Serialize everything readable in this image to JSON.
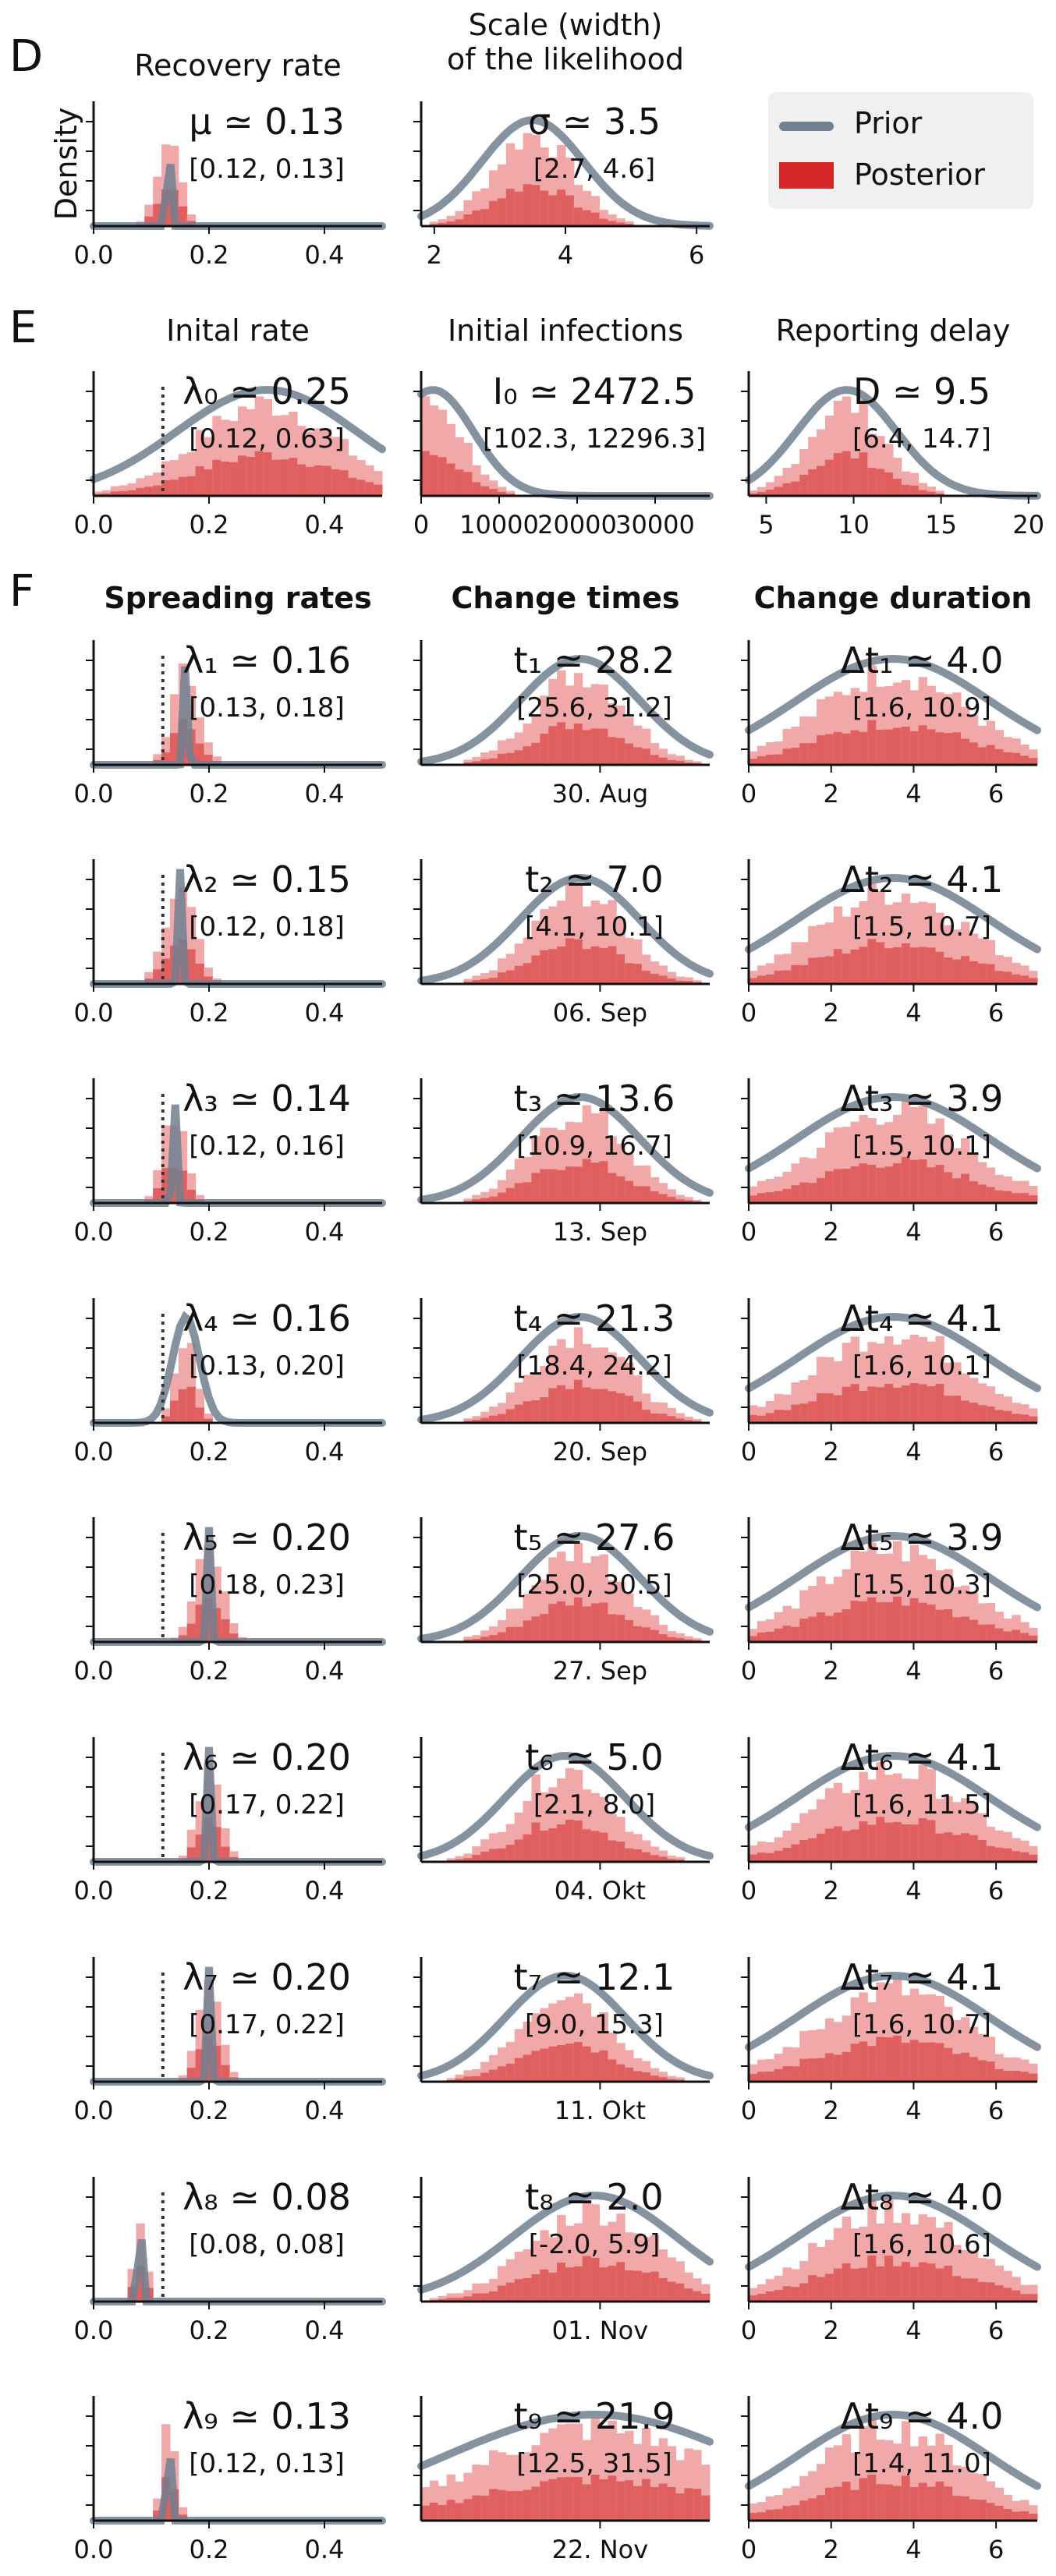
{
  "sections": [
    {
      "letter": "D",
      "letter_pos": [
        12,
        40
      ]
    },
    {
      "letter": "E",
      "letter_pos": [
        12,
        388
      ]
    },
    {
      "letter": "F",
      "letter_pos": [
        12,
        726
      ]
    }
  ],
  "column_titles": [
    {
      "id": "recovery",
      "lines": [
        "Recovery rate"
      ],
      "bold": false
    },
    {
      "id": "scale",
      "lines": [
        "Scale (width)",
        "of the likelihood"
      ],
      "bold": false
    },
    {
      "id": "initrate",
      "lines": [
        "Inital rate"
      ],
      "bold": false
    },
    {
      "id": "initinf",
      "lines": [
        "Initial infections"
      ],
      "bold": false
    },
    {
      "id": "delay",
      "lines": [
        "Reporting delay"
      ],
      "bold": false
    },
    {
      "id": "spread",
      "lines": [
        "Spreading rates"
      ],
      "bold": true
    },
    {
      "id": "changet",
      "lines": [
        "Change times"
      ],
      "bold": true
    },
    {
      "id": "changed",
      "lines": [
        "Change duration"
      ],
      "bold": true
    }
  ],
  "legend": {
    "items": [
      {
        "label": "Prior",
        "color": "#708090",
        "type": "line"
      },
      {
        "label": "Posterior",
        "color": "#d62728",
        "type": "patch"
      }
    ]
  },
  "colors": {
    "prior": "#708090",
    "prior_light": "#b4bcc4",
    "posterior": "#e06060",
    "posterior_light": "#f0a8a8",
    "axis": "#111111"
  },
  "chart_data": [
    {
      "id": "mu",
      "type": "histogram",
      "ylabel": "Density",
      "xlim": [
        0,
        0.5
      ],
      "xticks": [
        "0.0",
        "0.2",
        "0.4"
      ],
      "param": "μ ≃ 0.13",
      "ci": "[0.12, 0.13]",
      "center": 0.13,
      "spread": 0.01
    },
    {
      "id": "sigma",
      "type": "histogram",
      "xlim": [
        1.8,
        6.2
      ],
      "xticks": [
        "2",
        "4",
        "6"
      ],
      "param": "σ ≃ 3.5",
      "ci": "[2.7, 4.6]",
      "center": 3.5,
      "spread": 0.6
    },
    {
      "id": "lambda0",
      "type": "histogram",
      "xlim": [
        0,
        0.5
      ],
      "xticks": [
        "0.0",
        "0.2",
        "0.4"
      ],
      "param": "λ₀ ≃ 0.25",
      "ci": "[0.12, 0.63]",
      "center": 0.3,
      "spread": 0.12,
      "ref_line": 0.12
    },
    {
      "id": "I0",
      "type": "histogram",
      "xlim": [
        0,
        37000
      ],
      "xticks": [
        "0",
        "10000",
        "20000",
        "30000"
      ],
      "param": "I₀ ≃ 2472.5",
      "ci": "[102.3, 12296.3]",
      "center": 1500,
      "spread": 4000
    },
    {
      "id": "D",
      "type": "histogram",
      "xlim": [
        4,
        20.5
      ],
      "xticks": [
        "5",
        "10",
        "15",
        "20"
      ],
      "param": "D ≃ 9.5",
      "ci": "[6.4, 14.7]",
      "center": 9.6,
      "spread": 2.2
    },
    {
      "id": "lambda1",
      "type": "histogram",
      "xlim": [
        0,
        0.5
      ],
      "xticks": [
        "0.0",
        "0.2",
        "0.4"
      ],
      "param": "λ₁ ≃ 0.16",
      "ci": "[0.13, 0.18]",
      "center": 0.16,
      "spread": 0.012,
      "ref_line": 0.12
    },
    {
      "id": "t1",
      "type": "histogram",
      "xlim": [
        0,
        1
      ],
      "xticks": [
        "30. Aug"
      ],
      "param": "t₁ ≃ 28.2",
      "ci": "[25.6, 31.2]",
      "center": 0.55,
      "spread": 0.16
    },
    {
      "id": "dt1",
      "type": "histogram",
      "xlim": [
        0,
        7
      ],
      "xticks": [
        "0",
        "2",
        "4",
        "6"
      ],
      "param": "Δt₁ ≃ 4.0",
      "ci": "[1.6, 10.9]",
      "center": 3.5,
      "spread": 1.8
    },
    {
      "id": "lambda2",
      "type": "histogram",
      "xlim": [
        0,
        0.5
      ],
      "xticks": [
        "0.0",
        "0.2",
        "0.4"
      ],
      "param": "λ₂ ≃ 0.15",
      "ci": "[0.12, 0.18]",
      "center": 0.15,
      "spread": 0.013,
      "ref_line": 0.12
    },
    {
      "id": "t2",
      "type": "histogram",
      "xlim": [
        0,
        1
      ],
      "xticks": [
        "06. Sep"
      ],
      "param": "t₂ ≃ 7.0",
      "ci": "[4.1, 10.1]",
      "center": 0.55,
      "spread": 0.16
    },
    {
      "id": "dt2",
      "type": "histogram",
      "xlim": [
        0,
        7
      ],
      "xticks": [
        "0",
        "2",
        "4",
        "6"
      ],
      "param": "Δt₂ ≃ 4.1",
      "ci": "[1.5, 10.7]",
      "center": 3.5,
      "spread": 1.8
    },
    {
      "id": "lambda3",
      "type": "histogram",
      "xlim": [
        0,
        0.5
      ],
      "xticks": [
        "0.0",
        "0.2",
        "0.4"
      ],
      "param": "λ₃ ≃ 0.14",
      "ci": "[0.12, 0.16]",
      "center": 0.14,
      "spread": 0.01,
      "ref_line": 0.12
    },
    {
      "id": "t3",
      "type": "histogram",
      "xlim": [
        0,
        1
      ],
      "xticks": [
        "13. Sep"
      ],
      "param": "t₃ ≃ 13.6",
      "ci": "[10.9, 16.7]",
      "center": 0.55,
      "spread": 0.16
    },
    {
      "id": "dt3",
      "type": "histogram",
      "xlim": [
        0,
        7
      ],
      "xticks": [
        "0",
        "2",
        "4",
        "6"
      ],
      "param": "Δt₃ ≃ 3.9",
      "ci": "[1.5, 10.1]",
      "center": 3.5,
      "spread": 1.8
    },
    {
      "id": "lambda4",
      "type": "histogram",
      "xlim": [
        0,
        0.5
      ],
      "xticks": [
        "0.0",
        "0.2",
        "0.4"
      ],
      "param": "λ₄ ≃ 0.16",
      "ci": "[0.13, 0.20]",
      "center": 0.16,
      "spread": 0.018,
      "ref_line": 0.12
    },
    {
      "id": "t4",
      "type": "histogram",
      "xlim": [
        0,
        1
      ],
      "xticks": [
        "20. Sep"
      ],
      "param": "t₄ ≃ 21.3",
      "ci": "[18.4, 24.2]",
      "center": 0.55,
      "spread": 0.16
    },
    {
      "id": "dt4",
      "type": "histogram",
      "xlim": [
        0,
        7
      ],
      "xticks": [
        "0",
        "2",
        "4",
        "6"
      ],
      "param": "Δt₄ ≃ 4.1",
      "ci": "[1.6, 10.1]",
      "center": 3.5,
      "spread": 1.8
    },
    {
      "id": "lambda5",
      "type": "histogram",
      "xlim": [
        0,
        0.5
      ],
      "xticks": [
        "0.0",
        "0.2",
        "0.4"
      ],
      "param": "λ₅ ≃ 0.20",
      "ci": "[0.18, 0.23]",
      "center": 0.2,
      "spread": 0.012,
      "ref_line": 0.12
    },
    {
      "id": "t5",
      "type": "histogram",
      "xlim": [
        0,
        1
      ],
      "xticks": [
        "27. Sep"
      ],
      "param": "t₅ ≃ 27.6",
      "ci": "[25.0, 30.5]",
      "center": 0.55,
      "spread": 0.16
    },
    {
      "id": "dt5",
      "type": "histogram",
      "xlim": [
        0,
        7
      ],
      "xticks": [
        "0",
        "2",
        "4",
        "6"
      ],
      "param": "Δt₅ ≃ 3.9",
      "ci": "[1.5, 10.3]",
      "center": 3.5,
      "spread": 1.8
    },
    {
      "id": "lambda6",
      "type": "histogram",
      "xlim": [
        0,
        0.5
      ],
      "xticks": [
        "0.0",
        "0.2",
        "0.4"
      ],
      "param": "λ₆ ≃ 0.20",
      "ci": "[0.17, 0.22]",
      "center": 0.2,
      "spread": 0.01,
      "ref_line": 0.12
    },
    {
      "id": "t6",
      "type": "histogram",
      "xlim": [
        0,
        1
      ],
      "xticks": [
        "04. Okt"
      ],
      "param": "t₆ ≃ 5.0",
      "ci": "[2.1, 8.0]",
      "center": 0.5,
      "spread": 0.16
    },
    {
      "id": "dt6",
      "type": "histogram",
      "xlim": [
        0,
        7
      ],
      "xticks": [
        "0",
        "2",
        "4",
        "6"
      ],
      "param": "Δt₆ ≃ 4.1",
      "ci": "[1.6, 11.5]",
      "center": 3.5,
      "spread": 1.8
    },
    {
      "id": "lambda7",
      "type": "histogram",
      "xlim": [
        0,
        0.5
      ],
      "xticks": [
        "0.0",
        "0.2",
        "0.4"
      ],
      "param": "λ₇ ≃ 0.20",
      "ci": "[0.17, 0.22]",
      "center": 0.2,
      "spread": 0.01,
      "ref_line": 0.12
    },
    {
      "id": "t7",
      "type": "histogram",
      "xlim": [
        0,
        1
      ],
      "xticks": [
        "11. Okt"
      ],
      "param": "t₇ ≃ 12.1",
      "ci": "[9.0, 15.3]",
      "center": 0.5,
      "spread": 0.16
    },
    {
      "id": "dt7",
      "type": "histogram",
      "xlim": [
        0,
        7
      ],
      "xticks": [
        "0",
        "2",
        "4",
        "6"
      ],
      "param": "Δt₇ ≃ 4.1",
      "ci": "[1.6, 10.7]",
      "center": 3.5,
      "spread": 1.8
    },
    {
      "id": "lambda8",
      "type": "histogram",
      "xlim": [
        0,
        0.5
      ],
      "xticks": [
        "0.0",
        "0.2",
        "0.4"
      ],
      "param": "λ₈ ≃ 0.08",
      "ci": "[0.08, 0.08]",
      "center": 0.08,
      "spread": 0.005,
      "ref_line": 0.12
    },
    {
      "id": "t8",
      "type": "histogram",
      "xlim": [
        0,
        1
      ],
      "xticks": [
        "01. Nov"
      ],
      "param": "t₈ ≃ 2.0",
      "ci": "[-2.0, 5.9]",
      "center": 0.6,
      "spread": 0.22
    },
    {
      "id": "dt8",
      "type": "histogram",
      "xlim": [
        0,
        7
      ],
      "xticks": [
        "0",
        "2",
        "4",
        "6"
      ],
      "param": "Δt₈ ≃ 4.0",
      "ci": "[1.6, 10.6]",
      "center": 3.5,
      "spread": 1.8
    },
    {
      "id": "lambda9",
      "type": "histogram",
      "xlim": [
        0,
        0.5
      ],
      "xticks": [
        "0.0",
        "0.2",
        "0.4"
      ],
      "param": "λ₉ ≃ 0.13",
      "ci": "[0.12, 0.13]",
      "center": 0.13,
      "spread": 0.006
    },
    {
      "id": "t9",
      "type": "histogram",
      "xlim": [
        0,
        1
      ],
      "xticks": [
        "22. Nov"
      ],
      "param": "t₉ ≃ 21.9",
      "ci": "[12.5, 31.5]",
      "center": 0.6,
      "spread": 0.4
    },
    {
      "id": "dt9",
      "type": "histogram",
      "xlim": [
        0,
        7
      ],
      "xticks": [
        "0",
        "2",
        "4",
        "6"
      ],
      "param": "Δt₉ ≃ 4.0",
      "ci": "[1.4, 11.0]",
      "center": 3.5,
      "spread": 1.8
    }
  ]
}
